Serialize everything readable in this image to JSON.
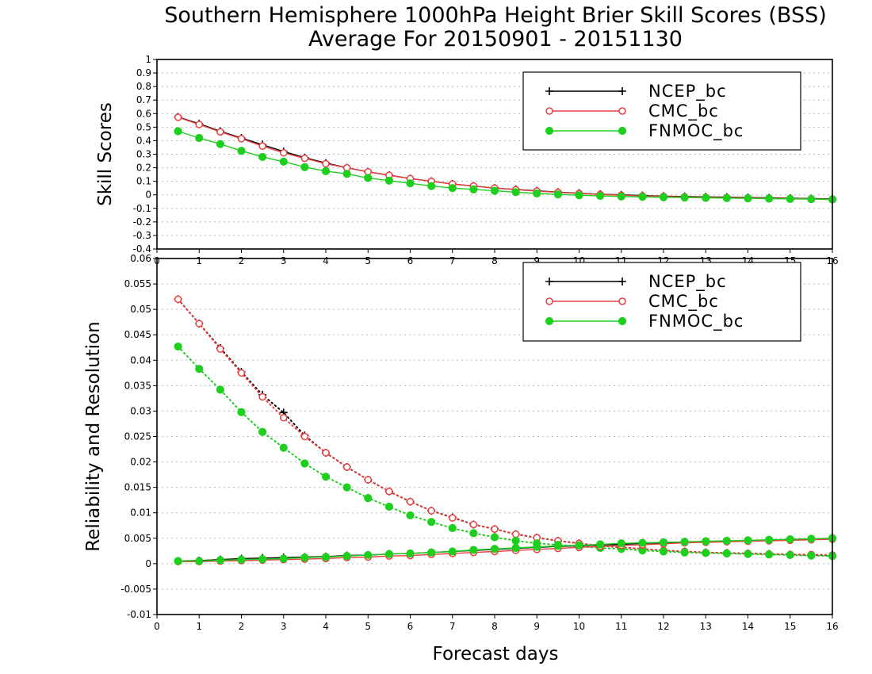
{
  "title": {
    "line1": "Southern Hemisphere 1000hPa Height Brier Skill Scores (BSS)",
    "line2": "Average For 20150901 - 20151130"
  },
  "xlabel": "Forecast days",
  "colors": {
    "NCEP_bc": "#000000",
    "CMC_bc": "#e84040",
    "FNMOC_bc": "#1fcf1f"
  },
  "chart_data": [
    {
      "type": "line",
      "ylabel": "Skill Scores",
      "xlim": [
        0,
        16
      ],
      "ylim": [
        -0.4,
        1
      ],
      "x_ticks": [
        0,
        1,
        2,
        3,
        4,
        5,
        6,
        7,
        8,
        9,
        10,
        11,
        12,
        13,
        14,
        15,
        16
      ],
      "y_ticks": [
        -0.4,
        -0.3,
        -0.2,
        -0.1,
        0,
        0.1,
        0.2,
        0.3,
        0.4,
        0.5,
        0.6,
        0.7,
        0.8,
        0.9,
        1
      ],
      "y_tick_labels": [
        "-0.4",
        "-0.3",
        "-0.2",
        "-0.1",
        "0",
        "0.1",
        "0.2",
        "0.3",
        "0.4",
        "0.5",
        "0.6",
        "0.7",
        "0.8",
        "0.9",
        "1"
      ],
      "grid": true,
      "legend_position": "top-right",
      "x": [
        0.5,
        1,
        1.5,
        2,
        2.5,
        3,
        3.5,
        4,
        4.5,
        5,
        5.5,
        6,
        6.5,
        7,
        7.5,
        8,
        8.5,
        9,
        9.5,
        10,
        10.5,
        11,
        11.5,
        12,
        12.5,
        13,
        13.5,
        14,
        14.5,
        15,
        15.5,
        16
      ],
      "series": [
        {
          "name": "NCEP_bc",
          "marker": "plus",
          "style": "solid",
          "values": [
            0.575,
            0.525,
            0.47,
            0.42,
            0.37,
            0.32,
            0.275,
            0.235,
            0.2,
            0.17,
            0.145,
            0.12,
            0.1,
            0.08,
            0.065,
            0.05,
            0.04,
            0.03,
            0.02,
            0.012,
            0.005,
            0.0,
            -0.005,
            -0.01,
            -0.012,
            -0.015,
            -0.017,
            -0.02,
            -0.022,
            -0.025,
            -0.028,
            -0.03
          ]
        },
        {
          "name": "CMC_bc",
          "marker": "circle-open",
          "style": "solid",
          "values": [
            0.573,
            0.52,
            0.465,
            0.415,
            0.36,
            0.31,
            0.27,
            0.23,
            0.2,
            0.17,
            0.145,
            0.12,
            0.1,
            0.08,
            0.065,
            0.05,
            0.038,
            0.028,
            0.018,
            0.01,
            0.003,
            -0.003,
            -0.008,
            -0.012,
            -0.015,
            -0.018,
            -0.02,
            -0.022,
            -0.025,
            -0.027,
            -0.03,
            -0.032
          ]
        },
        {
          "name": "FNMOC_bc",
          "marker": "circle-filled",
          "style": "solid",
          "values": [
            0.47,
            0.42,
            0.375,
            0.325,
            0.28,
            0.245,
            0.205,
            0.175,
            0.155,
            0.125,
            0.105,
            0.085,
            0.065,
            0.05,
            0.04,
            0.03,
            0.02,
            0.01,
            0.003,
            -0.003,
            -0.008,
            -0.012,
            -0.015,
            -0.018,
            -0.02,
            -0.022,
            -0.024,
            -0.026,
            -0.028,
            -0.03,
            -0.032,
            -0.034
          ]
        }
      ]
    },
    {
      "type": "line",
      "ylabel": "Reliability and Resolution",
      "xlim": [
        0,
        16
      ],
      "ylim": [
        -0.01,
        0.06
      ],
      "x_ticks": [
        0,
        1,
        2,
        3,
        4,
        5,
        6,
        7,
        8,
        9,
        10,
        11,
        12,
        13,
        14,
        15,
        16
      ],
      "y_ticks": [
        -0.01,
        -0.005,
        0,
        0.005,
        0.01,
        0.015,
        0.02,
        0.025,
        0.03,
        0.035,
        0.04,
        0.045,
        0.05,
        0.055,
        0.06
      ],
      "y_tick_labels": [
        "-0.01",
        "-0.005",
        "0",
        "0.005",
        "0.01",
        "0.015",
        "0.02",
        "0.025",
        "0.03",
        "0.035",
        "0.04",
        "0.045",
        "0.05",
        "0.055",
        "0.06"
      ],
      "grid": true,
      "legend_position": "top-right",
      "x": [
        0.5,
        1,
        1.5,
        2,
        2.5,
        3,
        3.5,
        4,
        4.5,
        5,
        5.5,
        6,
        6.5,
        7,
        7.5,
        8,
        8.5,
        9,
        9.5,
        10,
        10.5,
        11,
        11.5,
        12,
        12.5,
        13,
        13.5,
        14,
        14.5,
        15,
        15.5,
        16
      ],
      "series": [
        {
          "name": "NCEP_bc",
          "marker": "plus",
          "style": "dotted",
          "group": "reliability",
          "values": [
            0.052,
            0.0472,
            0.0424,
            0.0377,
            0.0332,
            0.0297,
            0.0252,
            0.0218,
            0.019,
            0.0165,
            0.0142,
            0.0122,
            0.0104,
            0.0091,
            0.0077,
            0.0068,
            0.0058,
            0.0051,
            0.0045,
            0.004,
            0.0035,
            0.0032,
            0.0029,
            0.0026,
            0.0024,
            0.0022,
            0.0021,
            0.002,
            0.0019,
            0.0018,
            0.0017,
            0.0016
          ]
        },
        {
          "name": "CMC_bc",
          "marker": "circle-open",
          "style": "dotted",
          "group": "reliability",
          "values": [
            0.052,
            0.0472,
            0.0422,
            0.0375,
            0.0328,
            0.0287,
            0.025,
            0.0218,
            0.019,
            0.0165,
            0.0142,
            0.0122,
            0.0104,
            0.009,
            0.0077,
            0.0068,
            0.0058,
            0.0051,
            0.0045,
            0.004,
            0.0035,
            0.0032,
            0.0029,
            0.0026,
            0.0024,
            0.0022,
            0.0021,
            0.002,
            0.0019,
            0.0018,
            0.0018,
            0.0017
          ]
        },
        {
          "name": "FNMOC_bc",
          "marker": "circle-filled",
          "style": "dotted",
          "group": "reliability",
          "values": [
            0.0427,
            0.0383,
            0.0342,
            0.0298,
            0.0259,
            0.0228,
            0.0197,
            0.0171,
            0.015,
            0.0129,
            0.0112,
            0.0095,
            0.0082,
            0.007,
            0.006,
            0.0052,
            0.0045,
            0.004,
            0.0037,
            0.0034,
            0.0031,
            0.0029,
            0.0026,
            0.0024,
            0.0022,
            0.0021,
            0.002,
            0.0019,
            0.0018,
            0.0017,
            0.0016,
            0.0015
          ]
        },
        {
          "name": "NCEP_bc",
          "marker": "plus",
          "style": "solid",
          "group": "resolution",
          "values": [
            0.0005,
            0.0006,
            0.0008,
            0.001,
            0.0011,
            0.0012,
            0.0013,
            0.0014,
            0.0016,
            0.0017,
            0.0019,
            0.002,
            0.0022,
            0.0024,
            0.0026,
            0.0028,
            0.003,
            0.0032,
            0.0034,
            0.0035,
            0.0037,
            0.0038,
            0.004,
            0.0041,
            0.0042,
            0.0043,
            0.0044,
            0.0045,
            0.0046,
            0.0047,
            0.0048,
            0.0049
          ]
        },
        {
          "name": "CMC_bc",
          "marker": "circle-open",
          "style": "solid",
          "group": "resolution",
          "values": [
            0.0004,
            0.0004,
            0.0005,
            0.0006,
            0.0007,
            0.0008,
            0.0009,
            0.001,
            0.0012,
            0.0013,
            0.0015,
            0.0016,
            0.0018,
            0.002,
            0.0022,
            0.0024,
            0.0026,
            0.0028,
            0.003,
            0.0032,
            0.0034,
            0.0036,
            0.0037,
            0.0039,
            0.0041,
            0.0042,
            0.0043,
            0.0044,
            0.0045,
            0.0046,
            0.0047,
            0.0048
          ]
        },
        {
          "name": "FNMOC_bc",
          "marker": "circle-filled",
          "style": "solid",
          "group": "resolution",
          "values": [
            0.0005,
            0.0005,
            0.0007,
            0.0008,
            0.0009,
            0.001,
            0.0012,
            0.0013,
            0.0015,
            0.0017,
            0.0019,
            0.002,
            0.0022,
            0.0024,
            0.0027,
            0.0029,
            0.0031,
            0.0033,
            0.0035,
            0.0036,
            0.0038,
            0.004,
            0.0041,
            0.0042,
            0.0043,
            0.0044,
            0.0045,
            0.0046,
            0.0047,
            0.0048,
            0.0049,
            0.005
          ]
        }
      ]
    }
  ]
}
